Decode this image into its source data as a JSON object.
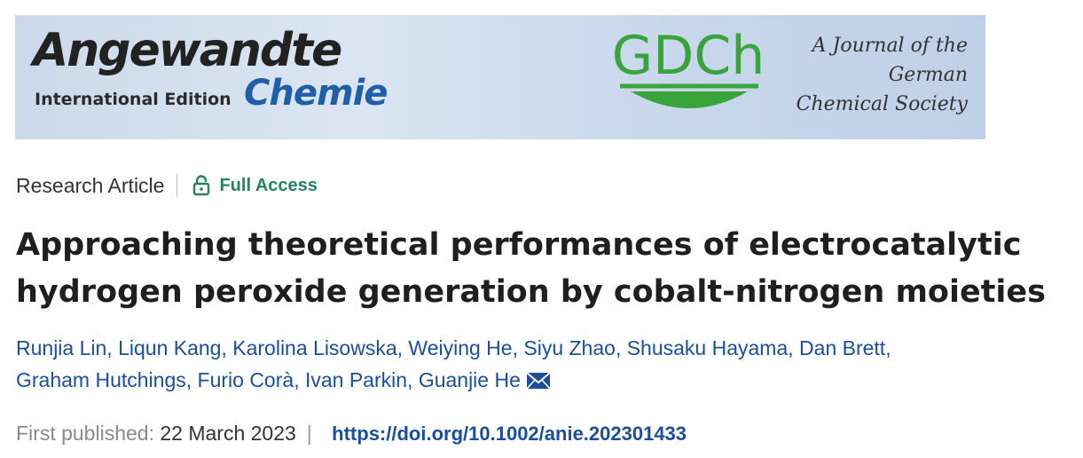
{
  "banner": {
    "journal_name": "Angewandte",
    "edition": "International Edition",
    "journal_sub": "Chemie",
    "society_logo": "GDCh",
    "society_line1": "A Journal of the",
    "society_line2": "German",
    "society_line3": "Chemical Society",
    "colors": {
      "green": "#3aa43c",
      "blue": "#1e5fa8"
    }
  },
  "article": {
    "type": "Research Article",
    "access_icon": "lock-open-icon",
    "access": "Full Access",
    "title": "Approaching theoretical performances of electrocatalytic hydrogen peroxide generation by cobalt-nitrogen moieties",
    "authors": [
      "Runjia Lin",
      "Liqun Kang",
      "Karolina Lisowska",
      "Weiying He",
      "Siyu Zhao",
      "Shusaku Hayama",
      "Dan Brett",
      "Graham Hutchings",
      "Furio Corà",
      "Ivan Parkin",
      "Guanjie He"
    ],
    "email_icon": "envelope-icon",
    "published_label": "First published:",
    "published_date": "22 March 2023",
    "doi": "https://doi.org/10.1002/anie.202301433"
  },
  "colors": {
    "access_green": "#23855b",
    "link_blue": "#1b4e9e"
  }
}
